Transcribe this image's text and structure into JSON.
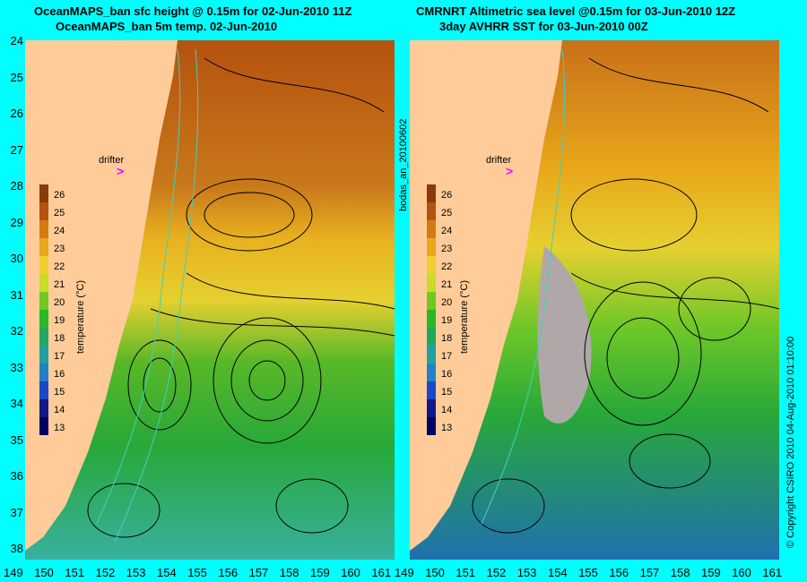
{
  "left_panel": {
    "title_line1": "OceanMAPS_ban sfc height @ 0.15m for 02-Jun-2010 11Z",
    "title_line2": "OceanMAPS_ban 5m temp. 02-Jun-2010",
    "drifter_label": "drifter",
    "side_label": "bodas_an_20100602"
  },
  "right_panel": {
    "title_line1": "CMRNRT Altimetric sea level  @0.15m  for 03-Jun-2010 12Z",
    "title_line2": "3day AVHRR SST for 03-Jun-2010 00Z",
    "drifter_label": "drifter",
    "side_label": "© Copyright CSIRO 2010    04-Aug-2010 01:10:00"
  },
  "x_ticks": [
    "149",
    "150",
    "151",
    "152",
    "153",
    "154",
    "155",
    "156",
    "157",
    "158",
    "159",
    "160",
    "161"
  ],
  "y_ticks": [
    "24",
    "25",
    "26",
    "27",
    "28",
    "29",
    "30",
    "31",
    "32",
    "33",
    "34",
    "35",
    "36",
    "37",
    "38"
  ],
  "colorbar": {
    "title": "temperature (°C)",
    "labels": [
      "26",
      "25",
      "24",
      "23",
      "22",
      "21",
      "20",
      "19",
      "18",
      "17",
      "16",
      "15",
      "14",
      "13"
    ],
    "colors": [
      "#8b3a0a",
      "#b5520f",
      "#d47a12",
      "#e8a81a",
      "#f0d030",
      "#c8dc28",
      "#70c820",
      "#28b828",
      "#20a860",
      "#20a0a0",
      "#2080c8",
      "#1848c8",
      "#101888",
      "#000060"
    ]
  },
  "colors": {
    "background": "#00ffff",
    "land": "#ffcc99",
    "marker": "#ff00ff"
  }
}
